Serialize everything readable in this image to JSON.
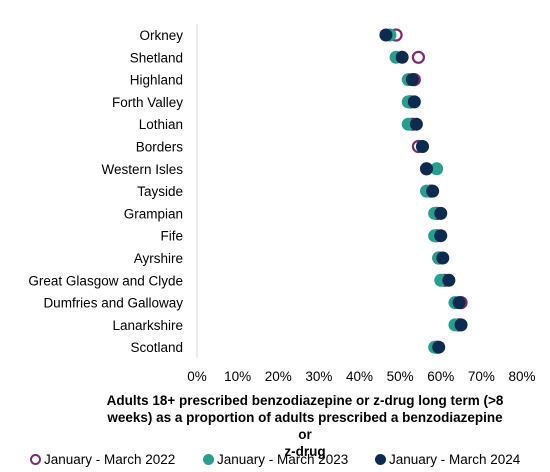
{
  "chart_data": {
    "type": "scatter",
    "orientation": "horizontal",
    "categories": [
      "Orkney",
      "Shetland",
      "Highland",
      "Forth Valley",
      "Lothian",
      "Borders",
      "Western Isles",
      "Tayside",
      "Grampian",
      "Fife",
      "Ayrshire",
      "Great Glasgow and Clyde",
      "Dumfries and Galloway",
      "Lanarkshire",
      "Scotland"
    ],
    "series": [
      {
        "name": "January - March 2022",
        "color": "#7B2C6E",
        "marker": "hollow-circle",
        "values": [
          49,
          54.5,
          53.5,
          52.5,
          53,
          54.5,
          56.5,
          57.5,
          59,
          59,
          59.5,
          61,
          65,
          64.5,
          59
        ]
      },
      {
        "name": "January - March 2023",
        "color": "#2A9D8F",
        "marker": "filled-circle",
        "values": [
          47.5,
          49,
          52,
          52,
          52,
          55.5,
          59,
          56.5,
          58.5,
          58.5,
          59.5,
          60,
          63.5,
          63.5,
          58.5
        ]
      },
      {
        "name": "January - March 2024",
        "color": "#0D2B4E",
        "marker": "filled-circle",
        "values": [
          46.5,
          50.5,
          53,
          53.5,
          54,
          55.5,
          56.5,
          58,
          60,
          60,
          60.5,
          62,
          64.5,
          65,
          59.5
        ]
      }
    ],
    "xlabel": "Adults 18+ prescribed benzodiazepine or z-drug long term (>8 weeks) as a proportion of adults prescribed a benzodiazepine or z-drug",
    "xlabel_lines": [
      "Adults 18+ prescribed benzodiazepine or z-drug long term (>8",
      "weeks) as a proportion of adults prescribed a benzodiazepine or",
      "z-drug"
    ],
    "xlim": [
      0,
      80
    ],
    "xticks": [
      "0%",
      "10%",
      "20%",
      "30%",
      "40%",
      "50%",
      "60%",
      "70%",
      "80%"
    ],
    "grid": false,
    "legend_position": "bottom"
  }
}
